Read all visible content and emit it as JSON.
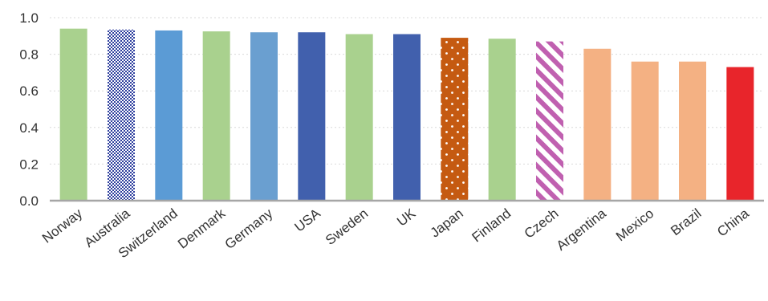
{
  "chart_data": {
    "type": "bar",
    "title": "",
    "xlabel": "",
    "ylabel": "",
    "ylim": [
      0,
      1.0
    ],
    "yticks": [
      "0.0",
      "0.2",
      "0.4",
      "0.6",
      "0.8",
      "1.0"
    ],
    "grid": true,
    "categories": [
      "Norway",
      "Australia",
      "Switzerland",
      "Denmark",
      "Germany",
      "USA",
      "Sweden",
      "UK",
      "Japan",
      "Finland",
      "Czech",
      "Argentina",
      "Mexico",
      "Brazil",
      "China"
    ],
    "values": [
      0.94,
      0.935,
      0.93,
      0.925,
      0.92,
      0.92,
      0.91,
      0.91,
      0.89,
      0.885,
      0.87,
      0.83,
      0.76,
      0.76,
      0.73
    ],
    "bar_colors": [
      "#a9d18e",
      "#2e3f9e",
      "#5b9bd5",
      "#a9d18e",
      "#6a9fd0",
      "#4160ad",
      "#a9d18e",
      "#4160ad",
      "#c55a11",
      "#a9d18e",
      "#c060b0",
      "#f4b183",
      "#f4b183",
      "#f4b183",
      "#e8252b"
    ],
    "bar_patterns": [
      "solid",
      "checker",
      "solid",
      "solid",
      "solid",
      "solid",
      "solid",
      "solid",
      "dots",
      "solid",
      "stripes",
      "solid",
      "solid",
      "solid",
      "solid"
    ]
  }
}
